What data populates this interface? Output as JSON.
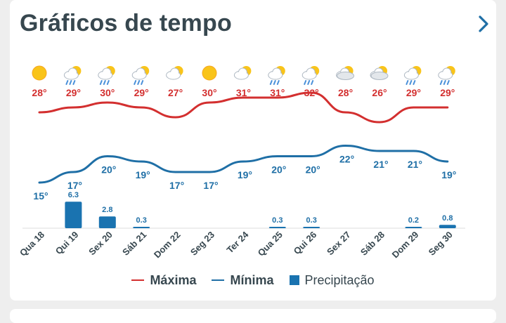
{
  "header": {
    "title": "Gráficos de tempo"
  },
  "legend": {
    "max": "Máxima",
    "min": "Mínima",
    "precip": "Precipitação"
  },
  "colors": {
    "max": "#d32f2f",
    "min": "#1f6fa6",
    "bar": "#1a73b0",
    "axis_text": "#37474f"
  },
  "chart_data": {
    "type": "line",
    "categories": [
      "Qua 18",
      "Qui 19",
      "Sex 20",
      "Sáb 21",
      "Dom 22",
      "Seg 23",
      "Ter 24",
      "Qua 25",
      "Qui 26",
      "Sex 27",
      "Sáb 28",
      "Dom 29",
      "Seg 30"
    ],
    "icons": [
      "sun-icon",
      "rain-sun-icon",
      "rain-sun-icon",
      "rain-sun-icon",
      "partly-cloudy-icon",
      "sun-icon",
      "partly-cloudy-icon",
      "rain-sun-icon",
      "rain-sun-icon",
      "cloudy-icon",
      "cloudy-icon",
      "rain-sun-icon",
      "rain-sun-icon"
    ],
    "series": [
      {
        "name": "Máxima",
        "unit": "°",
        "values": [
          28,
          29,
          30,
          29,
          27,
          30,
          31,
          31,
          32,
          28,
          26,
          29,
          29
        ]
      },
      {
        "name": "Mínima",
        "unit": "°",
        "values": [
          15,
          17,
          20,
          19,
          17,
          17,
          19,
          20,
          20,
          22,
          21,
          21,
          19
        ]
      },
      {
        "name": "Precipitação",
        "values": [
          0,
          6.3,
          2.8,
          0.3,
          0,
          0,
          0,
          0.3,
          0.3,
          0,
          0,
          0.2,
          0.8
        ]
      }
    ],
    "precip_labels": [
      "",
      "6.3",
      "2.8",
      "0.3",
      "",
      "",
      "",
      "0.3",
      "0.3",
      "",
      "",
      "0.2",
      "0.8"
    ]
  }
}
